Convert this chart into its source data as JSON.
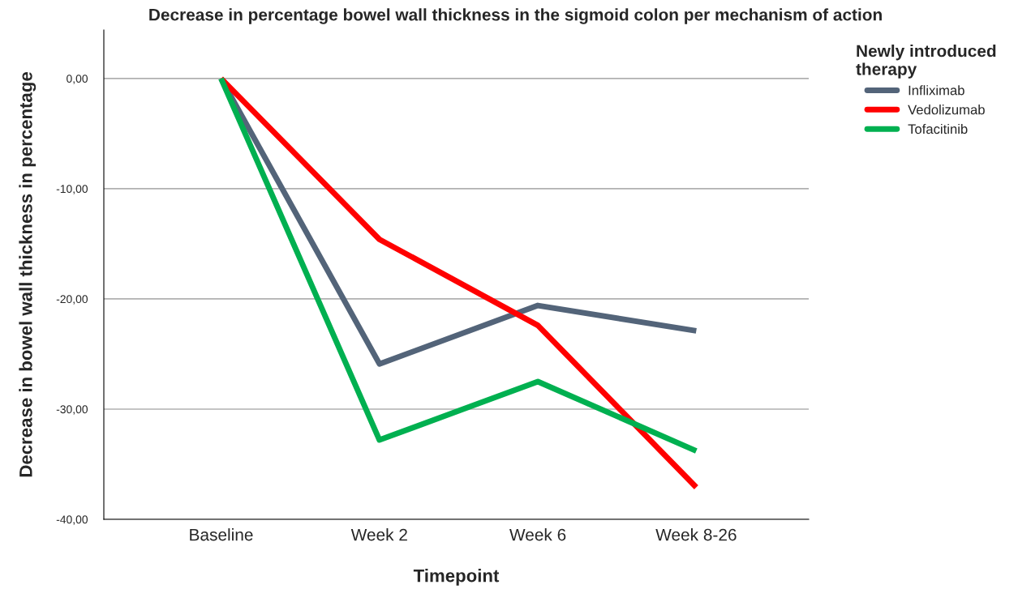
{
  "chart_data": {
    "type": "line",
    "title": "Decrease in percentage bowel wall thickness in the sigmoid colon per mechanism of action",
    "xlabel": "Timepoint",
    "ylabel": "Decrease in bowel wall thickness in percentage",
    "legend_title": "Newly introduced\ntherapy",
    "categories": [
      "Baseline",
      "Week 2",
      "Week 6",
      "Week 8-26"
    ],
    "series": [
      {
        "name": "Infliximab",
        "color": "#536479",
        "values": [
          0,
          -25.9,
          -20.6,
          -22.9
        ]
      },
      {
        "name": "Vedolizumab",
        "color": "#ff0000",
        "values": [
          0,
          -14.6,
          -22.4,
          -37.1
        ]
      },
      {
        "name": "Tofacitinib",
        "color": "#00b050",
        "values": [
          0,
          -32.8,
          -27.5,
          -33.8
        ]
      }
    ],
    "ylim": [
      -40,
      4.4
    ],
    "yticks": [
      {
        "value": 0,
        "label": "0,00"
      },
      {
        "value": -10,
        "label": "-10,00"
      },
      {
        "value": -20,
        "label": "-20,00"
      },
      {
        "value": -30,
        "label": "-30,00"
      },
      {
        "value": -40,
        "label": "-40,00"
      }
    ],
    "grid": "y",
    "legend": "top right",
    "marker": "none",
    "line_style": "solid"
  }
}
